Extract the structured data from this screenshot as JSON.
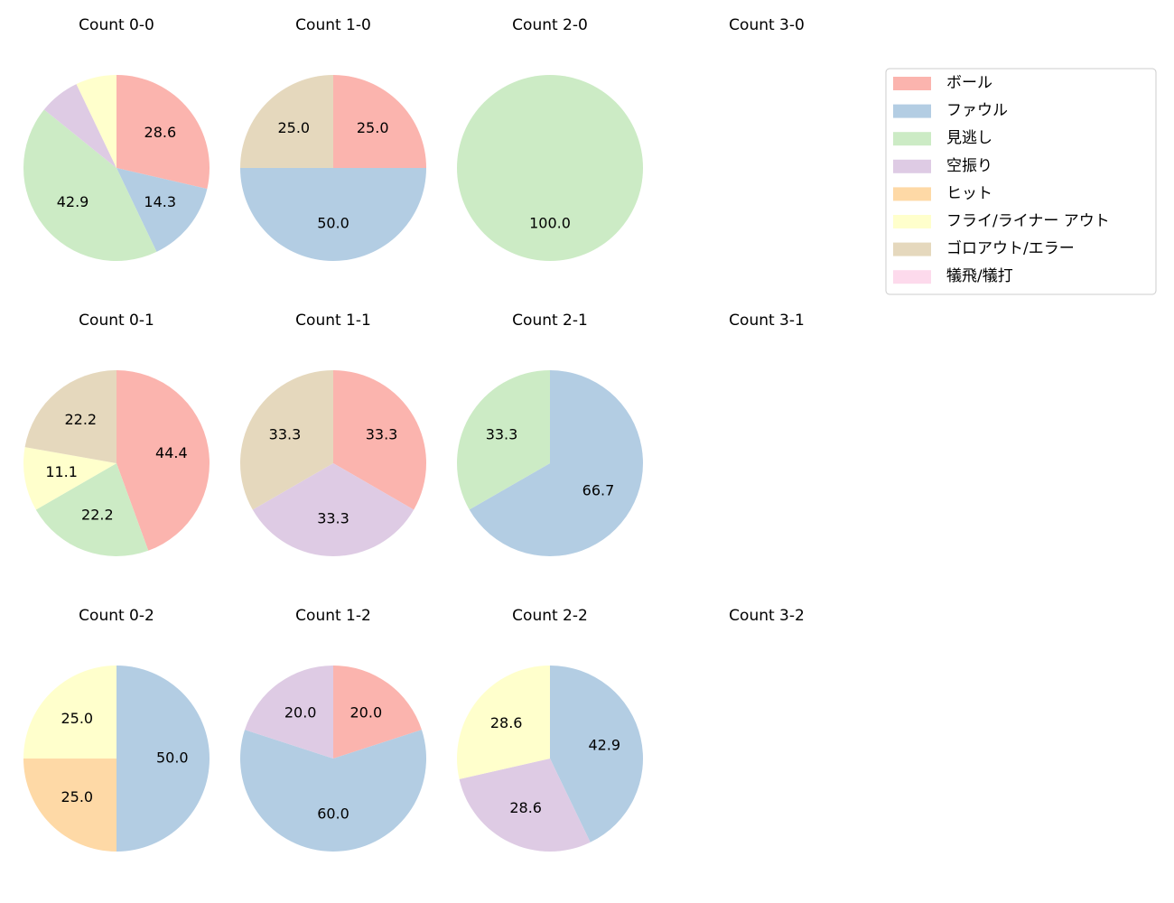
{
  "legend": {
    "categories": [
      "ボール",
      "ファウル",
      "見逃し",
      "空振り",
      "ヒット",
      "フライ/ライナー アウト",
      "ゴロアウト/エラー",
      "犠飛/犠打"
    ],
    "colors": [
      "#fbb4ae",
      "#b3cde3",
      "#ccebc5",
      "#decbe4",
      "#fed9a6",
      "#ffffcc",
      "#e5d8bd",
      "#fddaec"
    ]
  },
  "chart_data": [
    {
      "type": "pie",
      "title": "Count 0-0",
      "values": [
        28.6,
        14.3,
        42.9,
        7.1,
        0,
        7.1,
        0,
        0
      ]
    },
    {
      "type": "pie",
      "title": "Count 1-0",
      "values": [
        25.0,
        50.0,
        0,
        0,
        0,
        0,
        25.0,
        0
      ]
    },
    {
      "type": "pie",
      "title": "Count 2-0",
      "values": [
        0,
        0,
        100.0,
        0,
        0,
        0,
        0,
        0
      ]
    },
    {
      "type": "pie",
      "title": "Count 3-0"
    },
    {
      "type": "pie",
      "title": "Count 0-1",
      "values": [
        44.4,
        0,
        22.2,
        0,
        0,
        11.1,
        22.2,
        0
      ]
    },
    {
      "type": "pie",
      "title": "Count 1-1",
      "values": [
        33.3,
        0,
        0,
        33.3,
        0,
        0,
        33.3,
        0
      ]
    },
    {
      "type": "pie",
      "title": "Count 2-1",
      "values": [
        0,
        66.7,
        33.3,
        0,
        0,
        0,
        0,
        0
      ]
    },
    {
      "type": "pie",
      "title": "Count 3-1"
    },
    {
      "type": "pie",
      "title": "Count 0-2",
      "values": [
        0,
        50.0,
        0,
        0,
        25.0,
        25.0,
        0,
        0
      ]
    },
    {
      "type": "pie",
      "title": "Count 1-2",
      "values": [
        20.0,
        60.0,
        0,
        20.0,
        0,
        0,
        0,
        0
      ]
    },
    {
      "type": "pie",
      "title": "Count 2-2",
      "values": [
        0,
        42.9,
        0,
        28.6,
        0,
        28.6,
        0,
        0
      ]
    },
    {
      "type": "pie",
      "title": "Count 3-2"
    }
  ]
}
